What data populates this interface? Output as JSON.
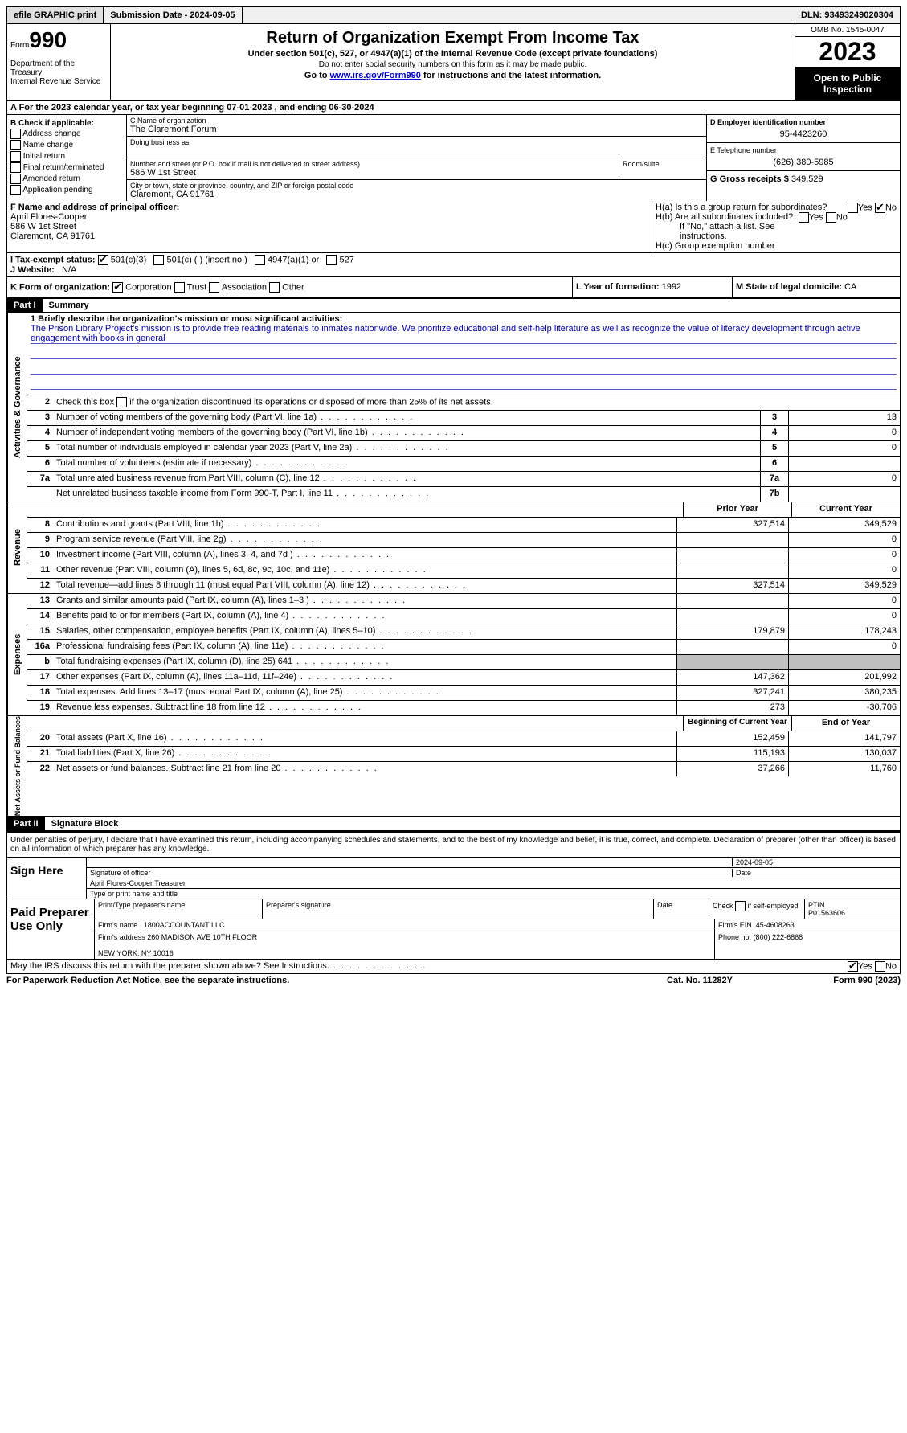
{
  "topbar": {
    "efile": "efile GRAPHIC print",
    "submission": "Submission Date - 2024-09-05",
    "dln": "DLN: 93493249020304"
  },
  "header": {
    "form_prefix": "Form",
    "form_number": "990",
    "title": "Return of Organization Exempt From Income Tax",
    "sub1": "Under section 501(c), 527, or 4947(a)(1) of the Internal Revenue Code (except private foundations)",
    "sub2": "Do not enter social security numbers on this form as it may be made public.",
    "sub3_pre": "Go to ",
    "sub3_link": "www.irs.gov/Form990",
    "sub3_post": " for instructions and the latest information.",
    "dept": "Department of the Treasury\nInternal Revenue Service",
    "omb": "OMB No. 1545-0047",
    "year": "2023",
    "open": "Open to Public Inspection"
  },
  "rowA": "A  For the 2023 calendar year, or tax year beginning 07-01-2023   , and ending 06-30-2024",
  "colB": {
    "title": "B Check if applicable:",
    "items": [
      "Address change",
      "Name change",
      "Initial return",
      "Final return/terminated",
      "Amended return",
      "Application pending"
    ]
  },
  "colC": {
    "name_label": "C Name of organization",
    "name": "The Claremont Forum",
    "dba_label": "Doing business as",
    "addr_label": "Number and street (or P.O. box if mail is not delivered to street address)",
    "addr": "586 W 1st Street",
    "room_label": "Room/suite",
    "city_label": "City or town, state or province, country, and ZIP or foreign postal code",
    "city": "Claremont, CA  91761"
  },
  "colD": {
    "ein_label": "D Employer identification number",
    "ein": "95-4423260",
    "phone_label": "E Telephone number",
    "phone": "(626) 380-5985",
    "gross_label": "G Gross receipts $",
    "gross": "349,529"
  },
  "rowF": {
    "label": "F  Name and address of principal officer:",
    "name": "April Flores-Cooper",
    "addr1": "586 W 1st Street",
    "addr2": "Claremont, CA  91761"
  },
  "rowH": {
    "ha": "H(a)  Is this a group return for subordinates?",
    "hb": "H(b)  Are all subordinates included?",
    "hb_note": "If \"No,\" attach a list. See instructions.",
    "hc": "H(c)  Group exemption number"
  },
  "rowI": {
    "label": "I     Tax-exempt status:",
    "opts": [
      "501(c)(3)",
      "501(c) ( ) (insert no.)",
      "4947(a)(1) or",
      "527"
    ]
  },
  "rowJ": {
    "label": "J    Website:",
    "val": "N/A"
  },
  "rowK": {
    "label": "K Form of organization:",
    "opts": [
      "Corporation",
      "Trust",
      "Association",
      "Other"
    ]
  },
  "rowL": {
    "label": "L Year of formation:",
    "val": "1992"
  },
  "rowM": {
    "label": "M State of legal domicile:",
    "val": "CA"
  },
  "part1": {
    "hdr": "Part I",
    "title": "Summary",
    "side1": "Activities & Governance",
    "side2": "Revenue",
    "side3": "Expenses",
    "side4": "Net Assets or Fund Balances",
    "line1_label": "1   Briefly describe the organization's mission or most significant activities:",
    "mission": "The Prison Library Project's mission is to provide free reading materials to inmates nationwide. We prioritize educational and self-help literature as well as recognize the value of literacy development through active engagement with books in general",
    "line2": "Check this box       if the organization discontinued its operations or disposed of more than 25% of its net assets.",
    "lines_gov": [
      {
        "n": "3",
        "t": "Number of voting members of the governing body (Part VI, line 1a)",
        "box": "3",
        "v": "13"
      },
      {
        "n": "4",
        "t": "Number of independent voting members of the governing body (Part VI, line 1b)",
        "box": "4",
        "v": "0"
      },
      {
        "n": "5",
        "t": "Total number of individuals employed in calendar year 2023 (Part V, line 2a)",
        "box": "5",
        "v": "0"
      },
      {
        "n": "6",
        "t": "Total number of volunteers (estimate if necessary)",
        "box": "6",
        "v": ""
      },
      {
        "n": "7a",
        "t": "Total unrelated business revenue from Part VIII, column (C), line 12",
        "box": "7a",
        "v": "0"
      },
      {
        "n": "",
        "t": "Net unrelated business taxable income from Form 990-T, Part I, line 11",
        "box": "7b",
        "v": ""
      }
    ],
    "col_prior": "Prior Year",
    "col_current": "Current Year",
    "lines_rev": [
      {
        "n": "8",
        "t": "Contributions and grants (Part VIII, line 1h)",
        "p": "327,514",
        "c": "349,529"
      },
      {
        "n": "9",
        "t": "Program service revenue (Part VIII, line 2g)",
        "p": "",
        "c": "0"
      },
      {
        "n": "10",
        "t": "Investment income (Part VIII, column (A), lines 3, 4, and 7d )",
        "p": "",
        "c": "0"
      },
      {
        "n": "11",
        "t": "Other revenue (Part VIII, column (A), lines 5, 6d, 8c, 9c, 10c, and 11e)",
        "p": "",
        "c": "0"
      },
      {
        "n": "12",
        "t": "Total revenue—add lines 8 through 11 (must equal Part VIII, column (A), line 12)",
        "p": "327,514",
        "c": "349,529"
      }
    ],
    "lines_exp": [
      {
        "n": "13",
        "t": "Grants and similar amounts paid (Part IX, column (A), lines 1–3 )",
        "p": "",
        "c": "0"
      },
      {
        "n": "14",
        "t": "Benefits paid to or for members (Part IX, column (A), line 4)",
        "p": "",
        "c": "0"
      },
      {
        "n": "15",
        "t": "Salaries, other compensation, employee benefits (Part IX, column (A), lines 5–10)",
        "p": "179,879",
        "c": "178,243"
      },
      {
        "n": "16a",
        "t": "Professional fundraising fees (Part IX, column (A), line 11e)",
        "p": "",
        "c": "0"
      },
      {
        "n": "b",
        "t": "Total fundraising expenses (Part IX, column (D), line 25) 641",
        "p": "grey",
        "c": "grey"
      },
      {
        "n": "17",
        "t": "Other expenses (Part IX, column (A), lines 11a–11d, 11f–24e)",
        "p": "147,362",
        "c": "201,992"
      },
      {
        "n": "18",
        "t": "Total expenses. Add lines 13–17 (must equal Part IX, column (A), line 25)",
        "p": "327,241",
        "c": "380,235"
      },
      {
        "n": "19",
        "t": "Revenue less expenses. Subtract line 18 from line 12",
        "p": "273",
        "c": "-30,706"
      }
    ],
    "col_begin": "Beginning of Current Year",
    "col_end": "End of Year",
    "lines_net": [
      {
        "n": "20",
        "t": "Total assets (Part X, line 16)",
        "p": "152,459",
        "c": "141,797"
      },
      {
        "n": "21",
        "t": "Total liabilities (Part X, line 26)",
        "p": "115,193",
        "c": "130,037"
      },
      {
        "n": "22",
        "t": "Net assets or fund balances. Subtract line 21 from line 20",
        "p": "37,266",
        "c": "11,760"
      }
    ]
  },
  "part2": {
    "hdr": "Part II",
    "title": "Signature Block",
    "intro": "Under penalties of perjury, I declare that I have examined this return, including accompanying schedules and statements, and to the best of my knowledge and belief, it is true, correct, and complete. Declaration of preparer (other than officer) is based on all information of which preparer has any knowledge.",
    "sign_here": "Sign Here",
    "sig_date": "2024-09-05",
    "sig_label1": "Signature of officer",
    "officer": "April Flores-Cooper  Treasurer",
    "sig_label2": "Type or print name and title",
    "paid": "Paid Preparer Use Only",
    "prep_name_label": "Print/Type preparer's name",
    "prep_sig_label": "Preparer's signature",
    "date_label": "Date",
    "check_label": "Check        if self-employed",
    "ptin_label": "PTIN",
    "ptin": "P01563606",
    "firm_name_label": "Firm's name",
    "firm_name": "1800ACCOUNTANT LLC",
    "firm_ein_label": "Firm's EIN",
    "firm_ein": "45-4608263",
    "firm_addr_label": "Firm's address",
    "firm_addr1": "260 MADISON AVE 10TH FLOOR",
    "firm_addr2": "NEW YORK, NY  10016",
    "phone_label": "Phone no.",
    "phone": "(800) 222-6868",
    "discuss": "May the IRS discuss this return with the preparer shown above? See Instructions."
  },
  "footer": {
    "left": "For Paperwork Reduction Act Notice, see the separate instructions.",
    "mid": "Cat. No. 11282Y",
    "right": "Form 990 (2023)"
  }
}
